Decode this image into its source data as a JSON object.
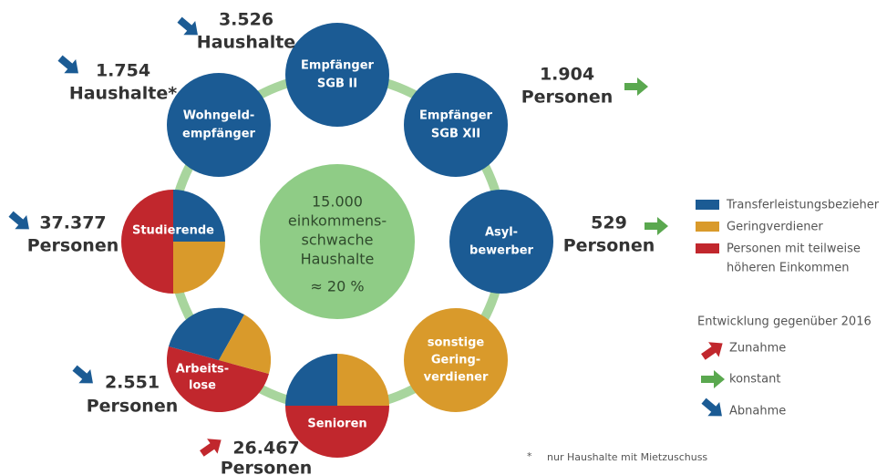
{
  "center": {
    "lines": [
      "15.000",
      "einkommens-",
      "schwache",
      "Haushalte"
    ],
    "share": "≈ 20 %"
  },
  "nodes": [
    {
      "label": [
        "Empfänger",
        "SGB II"
      ],
      "count": "3.526",
      "unit": "Haushalte"
    },
    {
      "label": [
        "Empfänger",
        "SGB XII"
      ],
      "count": "1.904",
      "unit": "Personen"
    },
    {
      "label": [
        "Asyl-",
        "bewerber"
      ],
      "count": "529",
      "unit": "Personen"
    },
    {
      "label": [
        "sonstige",
        "Gering-",
        "verdiener"
      ]
    },
    {
      "label": [
        "Senioren"
      ],
      "count": "26.467",
      "unit": "Personen"
    },
    {
      "label": [
        "Arbeits-",
        "lose"
      ],
      "count": "2.551",
      "unit": "Personen"
    },
    {
      "label": [
        "Studierende"
      ],
      "count": "37.377",
      "unit": "Personen"
    },
    {
      "label": [
        "Wohngeld-",
        "empfänger"
      ],
      "count": "1.754",
      "unit": "Haushalte*"
    }
  ],
  "legend": {
    "groups": [
      "Transferleistungsbezieher",
      "Geringverdiener",
      "Personen mit teilweise",
      "höheren Einkommen"
    ],
    "trend_title": "Entwicklung gegenüber 2016",
    "trends": [
      "Zunahme",
      "konstant",
      "Abnahme"
    ]
  },
  "footnote": {
    "mark": "*",
    "text": "nur Haushalte mit Mietzuschuss"
  }
}
